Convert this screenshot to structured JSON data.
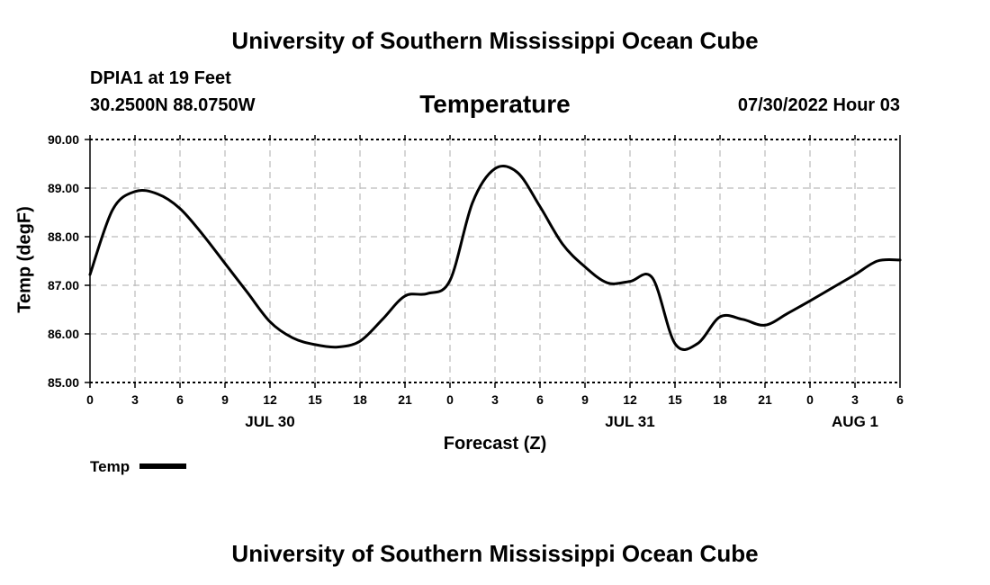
{
  "header": {
    "title": "University of Southern Mississippi Ocean Cube",
    "station": "DPIA1 at 19 Feet",
    "location": "30.2500N  88.0750W",
    "plot_title": "Temperature",
    "run_time": "07/30/2022 Hour 03"
  },
  "footer": {
    "title": "University of Southern Mississippi Ocean Cube"
  },
  "legend": {
    "label": "Temp"
  },
  "colors": {
    "line": "#000000",
    "grid": "#bbbbbb"
  },
  "chart_data": {
    "type": "line",
    "title": "Temperature",
    "xlabel": "Forecast (Z)",
    "ylabel": "Temp (degF)",
    "ylim": [
      85.0,
      90.0
    ],
    "xlim": [
      0,
      54
    ],
    "y_ticks": [
      "85.00",
      "86.00",
      "87.00",
      "88.00",
      "89.00",
      "90.00"
    ],
    "x_tick_labels": [
      "0",
      "3",
      "6",
      "9",
      "12",
      "15",
      "18",
      "21",
      "0",
      "3",
      "6",
      "9",
      "12",
      "15",
      "18",
      "21",
      "0",
      "3",
      "6"
    ],
    "date_labels": [
      {
        "label": "JUL 30",
        "hour": 12
      },
      {
        "label": "JUL 31",
        "hour": 36
      },
      {
        "label": "AUG 1",
        "hour": 51
      }
    ],
    "grid": true,
    "series": [
      {
        "name": "Temp",
        "x": [
          0,
          1.5,
          3,
          4.5,
          6,
          7.5,
          9,
          10.5,
          12,
          13.5,
          15,
          16.5,
          18,
          19.5,
          21,
          22.5,
          24,
          25.5,
          27,
          28.5,
          30,
          31.5,
          33,
          34.5,
          36,
          37.5,
          39,
          40.5,
          42,
          43.5,
          45,
          46.5,
          48,
          49.5,
          51,
          52.5,
          54
        ],
        "values": [
          87.22,
          88.55,
          88.93,
          88.88,
          88.58,
          88.05,
          87.45,
          86.85,
          86.25,
          85.92,
          85.78,
          85.73,
          85.85,
          86.3,
          86.78,
          86.83,
          87.1,
          88.7,
          89.4,
          89.32,
          88.62,
          87.85,
          87.38,
          87.05,
          87.08,
          87.15,
          85.8,
          85.8,
          86.35,
          86.3,
          86.18,
          86.42,
          86.68,
          86.95,
          87.22,
          87.5,
          87.52
        ]
      }
    ]
  }
}
